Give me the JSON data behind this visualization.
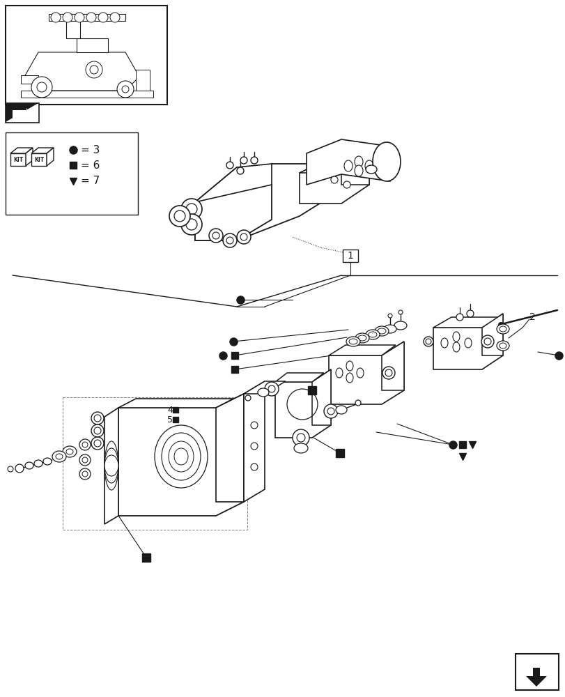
{
  "bg_color": "#ffffff",
  "lc": "#1a1a1a",
  "fig_width": 8.12,
  "fig_height": 10.0,
  "dpi": 100,
  "legend_circle": "= 3",
  "legend_square": "= 6",
  "legend_triangle": "= 7",
  "p1": "1",
  "p2": "2",
  "p4": "4",
  "p5": "5"
}
